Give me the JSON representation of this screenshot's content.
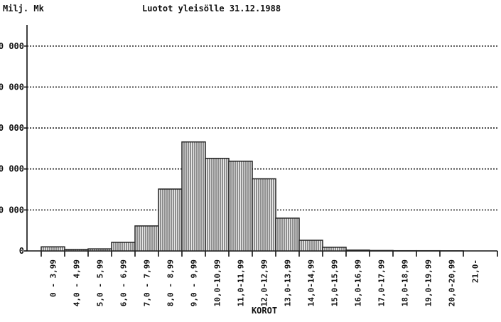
{
  "chart_data": {
    "type": "bar",
    "title": "Luotot yleisölle 31.12.1988",
    "y_label": "Milj. Mk",
    "x_label": "KOROT",
    "categories": [
      "0 - 3,99",
      "4,0 - 4,99",
      "5,0 - 5,99",
      "6,0 - 6,99",
      "7,0 - 7,99",
      "8,0 - 8,99",
      "9,0 - 9,99",
      "10,0-10,99",
      "11,0-11,99",
      "12,0-12,99",
      "13,0-13,99",
      "14,0-14,99",
      "15,0-15,99",
      "16,0-16,99",
      "17,0-17,99",
      "18,0-18,99",
      "19,0-19,99",
      "20,0-20,99",
      "21,0-"
    ],
    "values": [
      1000,
      350,
      500,
      2100,
      6100,
      15100,
      26600,
      22600,
      21900,
      17600,
      8000,
      2600,
      900,
      200,
      100,
      50,
      50,
      30,
      0
    ],
    "color": "#222222",
    "ylim": [
      0,
      55000
    ],
    "yticks": [
      0,
      {
        "value": 10000,
        "label": "0 000"
      },
      {
        "value": 20000,
        "label": "0 000"
      },
      {
        "value": 30000,
        "label": "0 000"
      },
      {
        "value": 40000,
        "label": "0 000"
      },
      {
        "value": 50000,
        "label": "0 000"
      }
    ],
    "grid": true
  }
}
